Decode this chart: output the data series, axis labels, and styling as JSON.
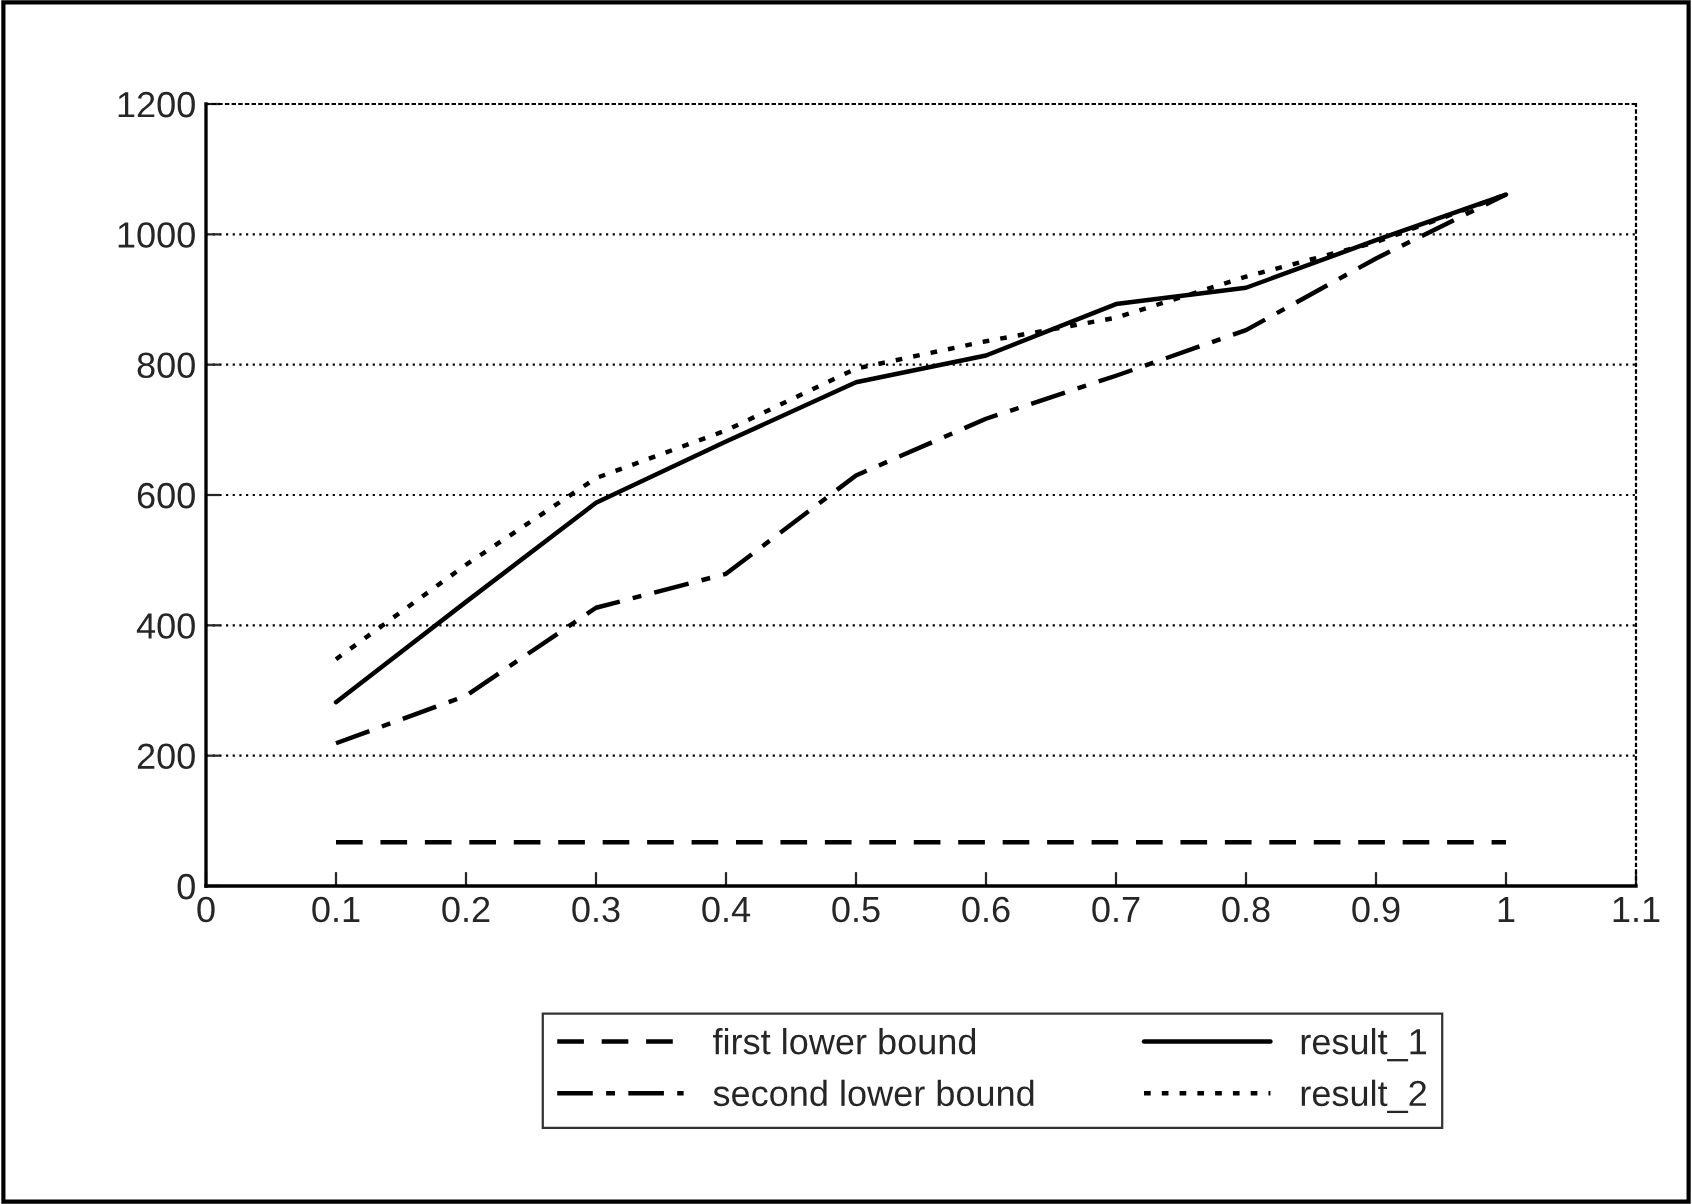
{
  "chart_data": {
    "type": "line",
    "x": [
      0.1,
      0.2,
      0.3,
      0.4,
      0.5,
      0.6,
      0.7,
      0.8,
      0.9,
      1
    ],
    "series": [
      {
        "name": "first lower bound",
        "color": "#000000",
        "line_style": "dashed",
        "values": [
          67,
          67,
          67,
          67,
          67,
          67,
          67,
          67,
          67,
          67
        ]
      },
      {
        "name": "second lower bound",
        "color": "#000000",
        "line_style": "dashdot",
        "values": [
          219,
          292,
          427,
          479,
          630,
          717,
          783,
          853,
          963,
          1061
        ]
      },
      {
        "name": "result_1",
        "color": "#000000",
        "line_style": "solid",
        "values": [
          282,
          436,
          588,
          682,
          773,
          814,
          893,
          918,
          991,
          1061
        ]
      },
      {
        "name": "result_2",
        "color": "#000000",
        "line_style": "dotted",
        "values": [
          348,
          493,
          626,
          699,
          794,
          836,
          872,
          935,
          988,
          1061
        ]
      }
    ],
    "xlim": [
      0,
      1.1
    ],
    "xticks": [
      0,
      0.1,
      0.2,
      0.3,
      0.4,
      0.5,
      0.6,
      0.7,
      0.8,
      0.9,
      1,
      1.1
    ],
    "ylim": [
      0,
      1200
    ],
    "yticks": [
      0,
      200,
      400,
      600,
      800,
      1000,
      1200
    ],
    "grid": "y",
    "legend": "bottom",
    "marker": "none"
  }
}
